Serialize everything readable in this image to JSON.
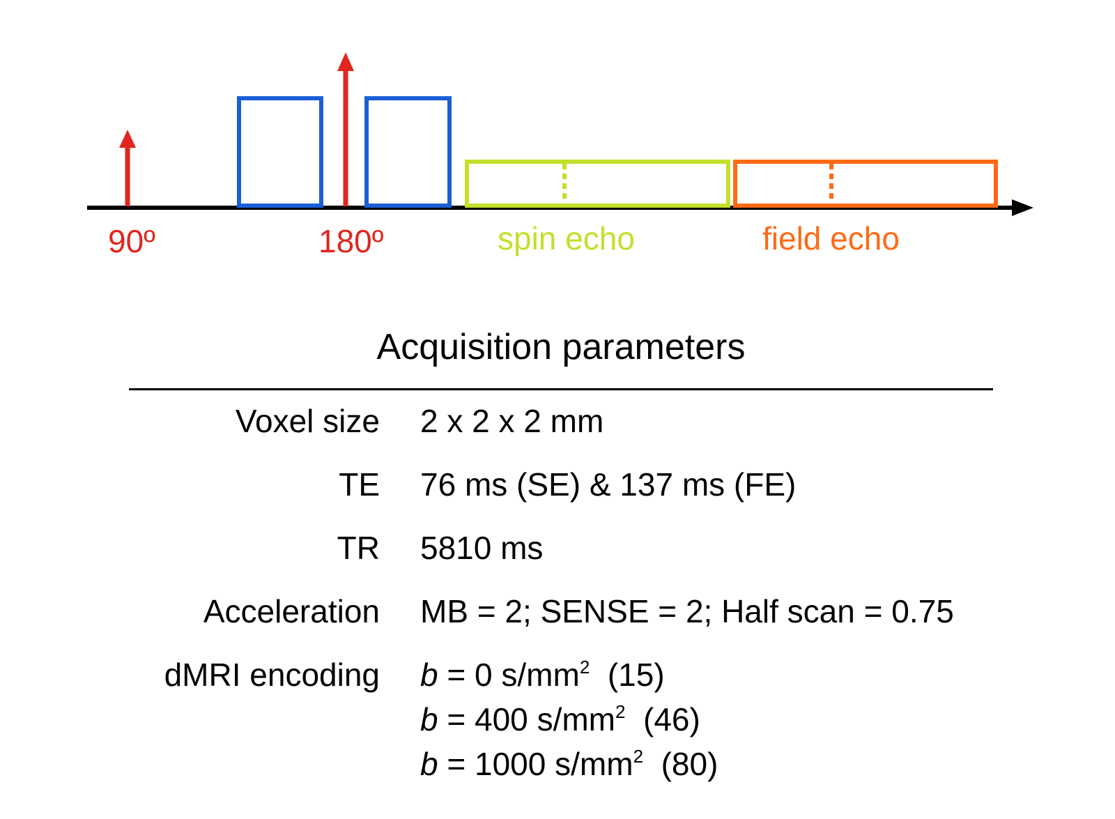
{
  "diagram": {
    "pulses": [
      {
        "label": "90º",
        "color": "#e0261e"
      },
      {
        "label": "180º",
        "color": "#e0261e"
      }
    ],
    "gradient_color": "#1a5fd6",
    "echoes": [
      {
        "label": "spin echo",
        "color": "#c4df2a"
      },
      {
        "label": "field echo",
        "color": "#ff6a14"
      }
    ],
    "axis_color": "#000000"
  },
  "params": {
    "title": "Acquisition parameters",
    "rows": [
      {
        "label": "Voxel size",
        "value": "2 x 2 x 2 mm"
      },
      {
        "label": "TE",
        "value": "76 ms (SE) & 137 ms (FE)"
      },
      {
        "label": "TR",
        "value": "5810 ms"
      },
      {
        "label": "Acceleration",
        "value": "MB = 2; SENSE = 2; Half scan = 0.75"
      }
    ],
    "encoding": {
      "label": "dMRI encoding",
      "symbol": "b",
      "unit": "s/mm",
      "unit_power": "2",
      "lines": [
        {
          "value": "= 0",
          "count": "(15)"
        },
        {
          "value": "= 400",
          "count": "(46)"
        },
        {
          "value": "= 1000",
          "count": "(80)"
        }
      ]
    }
  }
}
